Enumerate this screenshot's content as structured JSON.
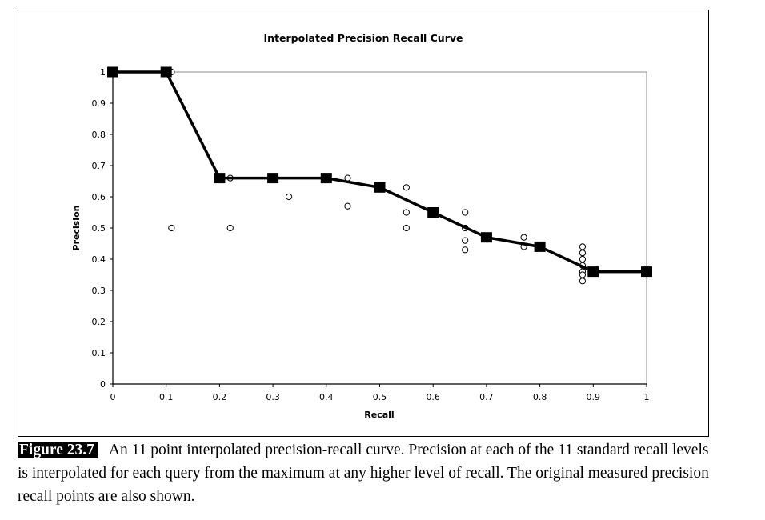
{
  "chart_data": {
    "type": "line",
    "title": "Interpolated Precision Recall Curve",
    "xlabel": "Recall",
    "ylabel": "Precision",
    "xlim": [
      0,
      1
    ],
    "ylim": [
      0,
      1
    ],
    "x_ticks": [
      "0",
      "0.1",
      "0.2",
      "0.3",
      "0.4",
      "0.5",
      "0.6",
      "0.7",
      "0.8",
      "0.9",
      "1"
    ],
    "y_ticks": [
      "0",
      "0.1",
      "0.2",
      "0.3",
      "0.4",
      "0.5",
      "0.6",
      "0.7",
      "0.8",
      "0.9",
      "1"
    ],
    "grid": false,
    "interpolated": {
      "x": [
        0,
        0.1,
        0.2,
        0.3,
        0.4,
        0.5,
        0.6,
        0.7,
        0.8,
        0.9,
        1.0
      ],
      "y": [
        1.0,
        1.0,
        0.66,
        0.66,
        0.66,
        0.63,
        0.55,
        0.47,
        0.44,
        0.36,
        0.36
      ]
    },
    "measured": {
      "x": [
        0.11,
        0.11,
        0.22,
        0.22,
        0.33,
        0.44,
        0.44,
        0.55,
        0.55,
        0.55,
        0.66,
        0.66,
        0.66,
        0.66,
        0.77,
        0.77,
        0.88,
        0.88,
        0.88,
        0.88,
        0.88,
        0.88,
        0.88
      ],
      "y": [
        1.0,
        0.5,
        0.66,
        0.5,
        0.6,
        0.66,
        0.57,
        0.63,
        0.55,
        0.5,
        0.55,
        0.5,
        0.46,
        0.43,
        0.47,
        0.44,
        0.44,
        0.42,
        0.4,
        0.38,
        0.36,
        0.35,
        0.33
      ]
    }
  },
  "caption": {
    "label": "Figure 23.7",
    "text": "An 11 point interpolated precision-recall curve. Precision at each of the 11 standard recall levels is interpolated for each query from the maximum at any higher level of recall. The original measured precision recall points are also shown."
  }
}
